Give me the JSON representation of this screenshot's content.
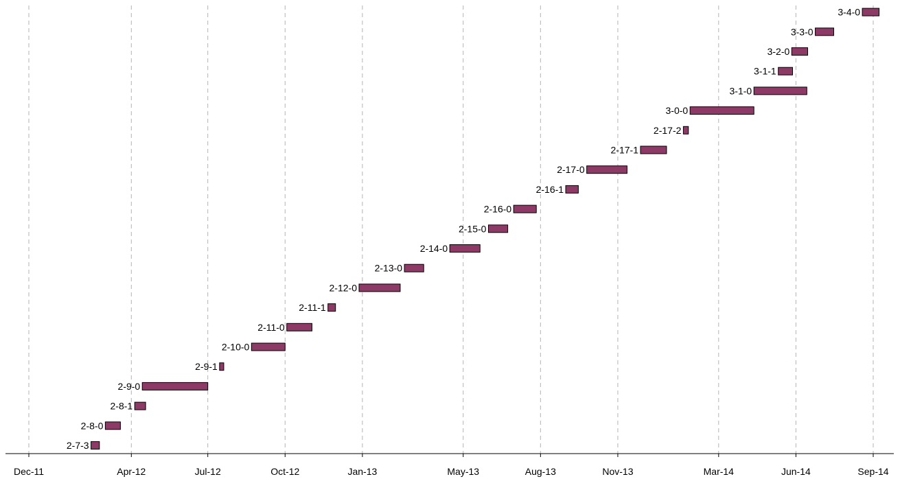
{
  "chart_data": {
    "type": "gantt",
    "title": "",
    "xlabel": "",
    "ylabel": "",
    "x_axis": {
      "type": "date",
      "range": [
        "2011-12-01",
        "2014-09-01"
      ],
      "ticks": [
        {
          "label": "Dec-11",
          "date": "2011-12-01"
        },
        {
          "label": "Apr-12",
          "date": "2012-04-01"
        },
        {
          "label": "Jul-12",
          "date": "2012-07-01"
        },
        {
          "label": "Oct-12",
          "date": "2012-10-01"
        },
        {
          "label": "Jan-13",
          "date": "2013-01-01"
        },
        {
          "label": "May-13",
          "date": "2013-05-01"
        },
        {
          "label": "Aug-13",
          "date": "2013-08-01"
        },
        {
          "label": "Nov-13",
          "date": "2013-11-01"
        },
        {
          "label": "Mar-14",
          "date": "2014-03-01"
        },
        {
          "label": "Jun-14",
          "date": "2014-06-01"
        },
        {
          "label": "Sep-14",
          "date": "2014-09-01"
        }
      ]
    },
    "grid": true,
    "bar_color": "#8e3a66",
    "tasks": [
      {
        "label": "2-7-3",
        "start": "2012-02-13",
        "end": "2012-02-23"
      },
      {
        "label": "2-8-0",
        "start": "2012-03-01",
        "end": "2012-03-19"
      },
      {
        "label": "2-8-1",
        "start": "2012-04-05",
        "end": "2012-04-18"
      },
      {
        "label": "2-9-0",
        "start": "2012-04-14",
        "end": "2012-07-01"
      },
      {
        "label": "2-9-1",
        "start": "2012-07-15",
        "end": "2012-07-20"
      },
      {
        "label": "2-10-0",
        "start": "2012-08-22",
        "end": "2012-10-01"
      },
      {
        "label": "2-11-0",
        "start": "2012-10-03",
        "end": "2012-11-02"
      },
      {
        "label": "2-11-1",
        "start": "2012-11-21",
        "end": "2012-11-30"
      },
      {
        "label": "2-12-0",
        "start": "2012-12-28",
        "end": "2013-02-15"
      },
      {
        "label": "2-13-0",
        "start": "2013-02-20",
        "end": "2013-03-15"
      },
      {
        "label": "2-14-0",
        "start": "2013-04-15",
        "end": "2013-05-21"
      },
      {
        "label": "2-15-0",
        "start": "2013-05-31",
        "end": "2013-06-23"
      },
      {
        "label": "2-16-0",
        "start": "2013-06-30",
        "end": "2013-07-27"
      },
      {
        "label": "2-16-1",
        "start": "2013-08-31",
        "end": "2013-09-15"
      },
      {
        "label": "2-17-0",
        "start": "2013-09-25",
        "end": "2013-11-12"
      },
      {
        "label": "2-17-1",
        "start": "2013-11-28",
        "end": "2013-12-29"
      },
      {
        "label": "2-17-2",
        "start": "2014-01-18",
        "end": "2014-01-24"
      },
      {
        "label": "3-0-0",
        "start": "2014-01-26",
        "end": "2014-04-12"
      },
      {
        "label": "3-1-0",
        "start": "2014-04-12",
        "end": "2014-06-14"
      },
      {
        "label": "3-1-1",
        "start": "2014-05-11",
        "end": "2014-05-28"
      },
      {
        "label": "3-2-0",
        "start": "2014-05-27",
        "end": "2014-06-15"
      },
      {
        "label": "3-3-0",
        "start": "2014-06-24",
        "end": "2014-07-16"
      },
      {
        "label": "3-4-0",
        "start": "2014-08-19",
        "end": "2014-09-08"
      }
    ]
  }
}
